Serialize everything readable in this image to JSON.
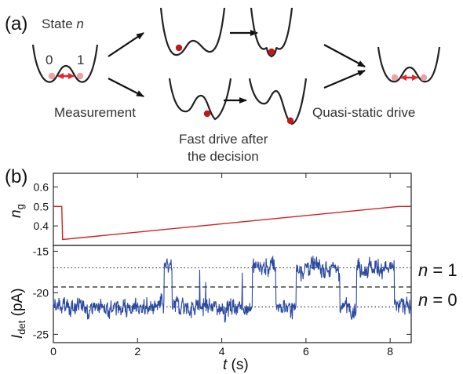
{
  "panel_a": {
    "label": "(a)",
    "state_prefix": "State ",
    "state_var": "n",
    "well_left_label": "0",
    "well_right_label": "1",
    "measurement": "Measurement",
    "fast_drive_line1": "Fast drive after",
    "fast_drive_line2": "the decision",
    "quasi_static": "Quasi-static drive"
  },
  "panel_b": {
    "label": "(b)",
    "ng_label_main": "n",
    "ng_label_sub": "g",
    "idet_label_main": "I",
    "idet_label_sub": "det",
    "idet_unit": " (pA)",
    "t_label_main": "t",
    "t_label_unit": " (s)",
    "level_n1": "n = 1",
    "level_n0": "n = 0"
  },
  "colors": {
    "ng_trace": "#d42020",
    "idet_trace": "#2b4aa0",
    "particle_dark": "#c21a1a",
    "particle_light": "#e9a3a3",
    "double_arrow": "#e0262c"
  },
  "chart_data": [
    {
      "type": "line",
      "title": "",
      "xlabel": "",
      "ylabel": "n_g",
      "xlim": [
        0,
        8.5
      ],
      "ylim": [
        0.3,
        0.67
      ],
      "yticks": [
        "0.6",
        "0.5",
        "0.4"
      ],
      "series": [
        {
          "x": [
            0,
            0.2,
            0.22,
            8.2,
            8.5
          ],
          "values": [
            0.5,
            0.5,
            0.33,
            0.5,
            0.5
          ]
        }
      ]
    },
    {
      "type": "line",
      "title": "",
      "xlabel": "t (s)",
      "ylabel": "I_det (pA)",
      "xlim": [
        0,
        8.5
      ],
      "ylim": [
        -26,
        -14.3
      ],
      "xticks": [
        "0",
        "2",
        "4",
        "6",
        "8"
      ],
      "yticks": [
        "-15",
        "-20",
        "-25"
      ],
      "reference_lines": [
        {
          "style": "dotted",
          "y": -17
        },
        {
          "style": "dashed",
          "y": -19.3
        },
        {
          "style": "dotted",
          "y": -21.7
        }
      ],
      "series": [
        {
          "levels": {
            "low": -21.7,
            "high": -17.0
          },
          "noise_pA": 0.9,
          "high_intervals": [
            [
              2.63,
              2.82
            ],
            [
              4.73,
              5.28
            ],
            [
              5.77,
              6.8
            ],
            [
              7.2,
              8.1
            ]
          ]
        }
      ]
    }
  ]
}
